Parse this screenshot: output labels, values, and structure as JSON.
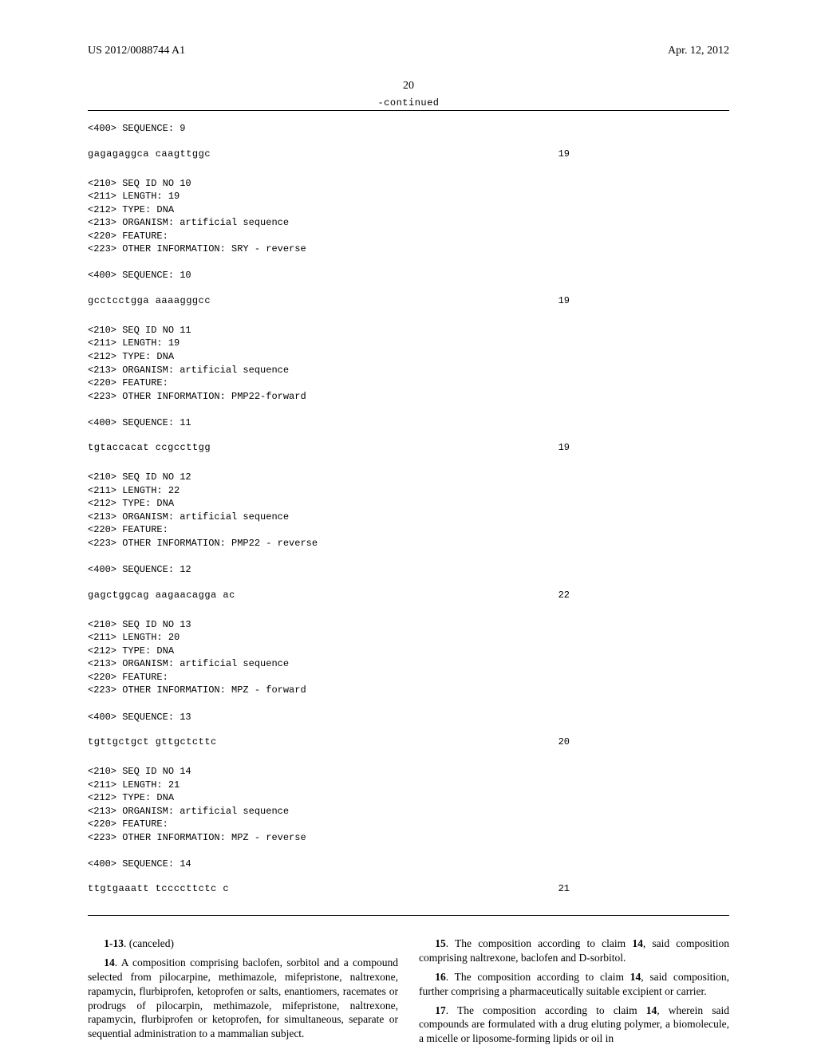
{
  "header": {
    "pubnum": "US 2012/0088744 A1",
    "date": "Apr. 12, 2012",
    "pagenum": "20",
    "continued": "-continued"
  },
  "sequences": [
    {
      "pre": "<400> SEQUENCE: 9",
      "seq": "gagagaggca caagttggc",
      "len": "19"
    },
    {
      "block": "<210> SEQ ID NO 10\n<211> LENGTH: 19\n<212> TYPE: DNA\n<213> ORGANISM: artificial sequence\n<220> FEATURE:\n<223> OTHER INFORMATION: SRY - reverse\n\n<400> SEQUENCE: 10",
      "seq": "gcctcctgga aaaagggcc",
      "len": "19"
    },
    {
      "block": "<210> SEQ ID NO 11\n<211> LENGTH: 19\n<212> TYPE: DNA\n<213> ORGANISM: artificial sequence\n<220> FEATURE:\n<223> OTHER INFORMATION: PMP22-forward\n\n<400> SEQUENCE: 11",
      "seq": "tgtaccacat ccgccttgg",
      "len": "19"
    },
    {
      "block": "<210> SEQ ID NO 12\n<211> LENGTH: 22\n<212> TYPE: DNA\n<213> ORGANISM: artificial sequence\n<220> FEATURE:\n<223> OTHER INFORMATION: PMP22 - reverse\n\n<400> SEQUENCE: 12",
      "seq": "gagctggcag aagaacagga ac",
      "len": "22"
    },
    {
      "block": "<210> SEQ ID NO 13\n<211> LENGTH: 20\n<212> TYPE: DNA\n<213> ORGANISM: artificial sequence\n<220> FEATURE:\n<223> OTHER INFORMATION: MPZ - forward\n\n<400> SEQUENCE: 13",
      "seq": "tgttgctgct gttgctcttc",
      "len": "20"
    },
    {
      "block": "<210> SEQ ID NO 14\n<211> LENGTH: 21\n<212> TYPE: DNA\n<213> ORGANISM: artificial sequence\n<220> FEATURE:\n<223> OTHER INFORMATION: MPZ - reverse\n\n<400> SEQUENCE: 14",
      "seq": "ttgtgaaatt tccccttctc c",
      "len": "21"
    }
  ],
  "claims": [
    {
      "num": "1-13",
      "text": ". (canceled)"
    },
    {
      "num": "14",
      "text": ". A composition comprising baclofen, sorbitol and a compound selected from pilocarpine, methimazole, mifepristone, naltrexone, rapamycin, flurbiprofen, ketoprofen or salts, enantiomers, racemates or prodrugs of pilocarpin, methimazole, mifepristone, naltrexone, rapamycin, flurbiprofen or ketoprofen, for simultaneous, separate or sequential administration to a mammalian subject."
    },
    {
      "num": "15",
      "text": ". The composition according to claim 14, said composition comprising naltrexone, baclofen and D-sorbitol."
    },
    {
      "num": "16",
      "text": ". The composition according to claim 14, said composition, further comprising a pharmaceutically suitable excipient or carrier."
    },
    {
      "num": "17",
      "text": ". The composition according to claim 14, wherein said compounds are formulated with a drug eluting polymer, a biomolecule, a micelle or liposome-forming lipids or oil in"
    }
  ]
}
